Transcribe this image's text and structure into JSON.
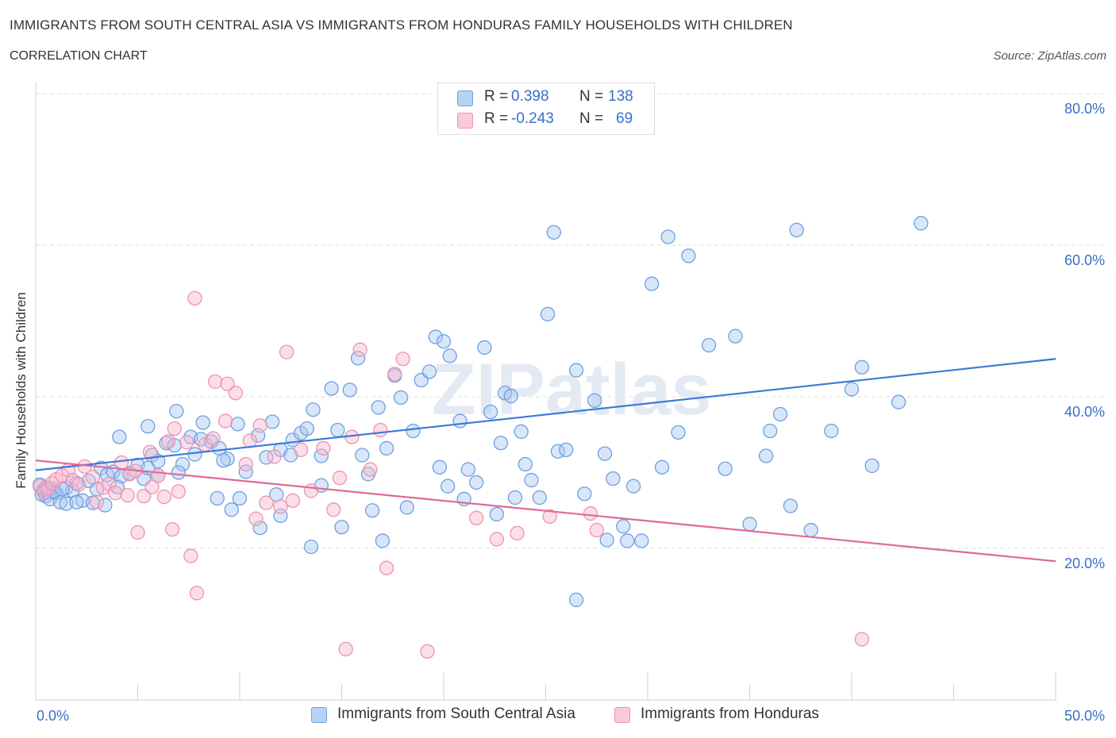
{
  "title": "IMMIGRANTS FROM SOUTH CENTRAL ASIA VS IMMIGRANTS FROM HONDURAS FAMILY HOUSEHOLDS WITH CHILDREN",
  "subtitle": "CORRELATION CHART",
  "source": "Source: ZipAtlas.com",
  "watermark": "ZIPatlas",
  "legend": {
    "rows": [
      {
        "r_label": "R =",
        "r_value": "0.398",
        "n_label": "N =",
        "n_value": "138",
        "color": "#a9c8f2"
      },
      {
        "r_label": "R =",
        "r_value": "-0.243",
        "n_label": "N =",
        "n_value": "69",
        "color": "#f6b8cc"
      }
    ]
  },
  "chart_data": {
    "type": "scatter",
    "xlabel": "",
    "ylabel": "Family Households with Children",
    "xlim": [
      0,
      50
    ],
    "ylim": [
      0,
      80
    ],
    "x_tick_labels": [
      "0.0%",
      "50.0%"
    ],
    "y_ticks": [
      20,
      40,
      60,
      80
    ],
    "y_tick_labels": [
      "20.0%",
      "40.0%",
      "60.0%",
      "80.0%"
    ],
    "grid": true,
    "legend_position": "top-center",
    "series": [
      {
        "name": "Immigrants from South Central Asia",
        "color": "#6f9fe0",
        "fill": "#a9c8f2",
        "line_color": "#3a78d8",
        "trend": [
          [
            0,
            30.3
          ],
          [
            50,
            45.0
          ]
        ],
        "points": [
          [
            0.2,
            28.4
          ],
          [
            0.3,
            27.1
          ],
          [
            0.4,
            27.7
          ],
          [
            0.5,
            26.9
          ],
          [
            0.6,
            27.4
          ],
          [
            0.7,
            26.5
          ],
          [
            0.8,
            27.9
          ],
          [
            1.0,
            27.3
          ],
          [
            1.2,
            26.1
          ],
          [
            1.5,
            28.0
          ],
          [
            1.8,
            27.6
          ],
          [
            2.0,
            28.6
          ],
          [
            2.3,
            26.3
          ],
          [
            2.6,
            28.9
          ],
          [
            3.0,
            27.8
          ],
          [
            3.2,
            30.6
          ],
          [
            3.5,
            29.7
          ],
          [
            3.8,
            30.1
          ],
          [
            4.2,
            29.5
          ],
          [
            4.6,
            29.9
          ],
          [
            5.0,
            31.0
          ],
          [
            5.3,
            29.2
          ],
          [
            5.7,
            32.3
          ],
          [
            6.0,
            31.5
          ],
          [
            6.4,
            33.9
          ],
          [
            6.8,
            33.6
          ],
          [
            7.2,
            31.1
          ],
          [
            7.6,
            34.7
          ],
          [
            8.1,
            34.4
          ],
          [
            8.6,
            34.1
          ],
          [
            9.0,
            33.2
          ],
          [
            9.4,
            31.8
          ],
          [
            9.9,
            36.4
          ],
          [
            10.3,
            30.1
          ],
          [
            10.9,
            34.9
          ],
          [
            11.3,
            32.0
          ],
          [
            11.6,
            36.7
          ],
          [
            12.0,
            33.0
          ],
          [
            12.6,
            34.3
          ],
          [
            13.0,
            35.2
          ],
          [
            13.3,
            35.8
          ],
          [
            13.6,
            38.3
          ],
          [
            14.0,
            32.2
          ],
          [
            14.5,
            41.1
          ],
          [
            14.8,
            35.6
          ],
          [
            15.4,
            40.9
          ],
          [
            15.8,
            45.1
          ],
          [
            16.0,
            32.3
          ],
          [
            16.3,
            29.8
          ],
          [
            16.8,
            38.6
          ],
          [
            17.2,
            33.2
          ],
          [
            17.6,
            42.8
          ],
          [
            17.9,
            39.9
          ],
          [
            18.5,
            35.5
          ],
          [
            18.9,
            42.2
          ],
          [
            19.3,
            43.3
          ],
          [
            19.6,
            47.9
          ],
          [
            20.0,
            47.3
          ],
          [
            20.3,
            45.4
          ],
          [
            20.8,
            36.8
          ],
          [
            21.2,
            30.4
          ],
          [
            21.6,
            28.7
          ],
          [
            22.0,
            46.5
          ],
          [
            22.3,
            38.0
          ],
          [
            22.6,
            24.5
          ],
          [
            23.0,
            40.5
          ],
          [
            23.3,
            40.1
          ],
          [
            23.8,
            35.4
          ],
          [
            24.3,
            29.0
          ],
          [
            24.7,
            26.7
          ],
          [
            25.1,
            50.9
          ],
          [
            25.6,
            32.8
          ],
          [
            26.0,
            33.0
          ],
          [
            26.5,
            43.5
          ],
          [
            26.9,
            27.2
          ],
          [
            27.4,
            39.5
          ],
          [
            27.9,
            32.5
          ],
          [
            28.3,
            29.2
          ],
          [
            28.8,
            22.9
          ],
          [
            29.3,
            28.2
          ],
          [
            29.7,
            21.0
          ],
          [
            30.2,
            54.9
          ],
          [
            30.7,
            30.7
          ],
          [
            31.0,
            61.1
          ],
          [
            31.5,
            35.3
          ],
          [
            32.0,
            58.6
          ],
          [
            33.0,
            46.8
          ],
          [
            33.8,
            30.5
          ],
          [
            34.3,
            48.0
          ],
          [
            35.0,
            23.2
          ],
          [
            35.8,
            32.2
          ],
          [
            36.0,
            35.5
          ],
          [
            36.5,
            37.7
          ],
          [
            37.0,
            25.6
          ],
          [
            37.3,
            62.0
          ],
          [
            38.0,
            22.4
          ],
          [
            39.0,
            35.5
          ],
          [
            40.0,
            41.0
          ],
          [
            40.5,
            43.9
          ],
          [
            41.0,
            30.9
          ],
          [
            42.3,
            39.3
          ],
          [
            43.4,
            62.9
          ],
          [
            25.4,
            61.7
          ],
          [
            1.5,
            25.9
          ],
          [
            2.0,
            26.1
          ],
          [
            4.0,
            28.1
          ],
          [
            5.5,
            30.6
          ],
          [
            7.0,
            30.0
          ],
          [
            8.9,
            26.6
          ],
          [
            10.0,
            26.6
          ],
          [
            11.8,
            27.1
          ],
          [
            12.5,
            32.3
          ],
          [
            16.5,
            25.0
          ],
          [
            17.0,
            21.0
          ],
          [
            20.2,
            28.2
          ],
          [
            24.0,
            31.1
          ],
          [
            26.5,
            13.2
          ],
          [
            28.0,
            21.1
          ],
          [
            29.0,
            21.0
          ],
          [
            14.0,
            28.3
          ],
          [
            11.0,
            22.7
          ],
          [
            9.6,
            25.1
          ],
          [
            8.2,
            36.6
          ],
          [
            6.9,
            38.1
          ],
          [
            5.5,
            36.1
          ],
          [
            4.1,
            34.7
          ],
          [
            18.2,
            25.4
          ],
          [
            19.8,
            30.7
          ],
          [
            21.0,
            26.5
          ],
          [
            22.8,
            33.9
          ],
          [
            23.5,
            26.7
          ],
          [
            15.0,
            22.8
          ],
          [
            13.5,
            20.2
          ],
          [
            12.0,
            24.3
          ],
          [
            3.4,
            25.7
          ],
          [
            0.9,
            27.5
          ],
          [
            0.5,
            28.0
          ],
          [
            1.3,
            27.8
          ],
          [
            2.8,
            26.0
          ],
          [
            6.0,
            29.6
          ],
          [
            7.8,
            32.4
          ],
          [
            9.2,
            31.6
          ]
        ]
      },
      {
        "name": "Immigrants from Honduras",
        "color": "#ee93b0",
        "fill": "#f6b8cc",
        "line_color": "#e06a96",
        "trend": [
          [
            0,
            31.6
          ],
          [
            50,
            18.3
          ]
        ],
        "points": [
          [
            0.2,
            28.2
          ],
          [
            0.4,
            27.4
          ],
          [
            0.6,
            27.9
          ],
          [
            0.8,
            28.6
          ],
          [
            1.0,
            29.1
          ],
          [
            1.3,
            29.6
          ],
          [
            1.6,
            30.3
          ],
          [
            1.8,
            29.0
          ],
          [
            2.1,
            28.4
          ],
          [
            2.4,
            30.8
          ],
          [
            2.8,
            29.4
          ],
          [
            3.0,
            26.1
          ],
          [
            3.3,
            28.0
          ],
          [
            3.6,
            28.5
          ],
          [
            3.9,
            27.3
          ],
          [
            4.2,
            31.3
          ],
          [
            4.6,
            29.8
          ],
          [
            5.0,
            22.1
          ],
          [
            5.3,
            26.9
          ],
          [
            5.6,
            32.7
          ],
          [
            6.0,
            29.6
          ],
          [
            6.3,
            26.8
          ],
          [
            6.5,
            34.1
          ],
          [
            6.8,
            35.8
          ],
          [
            7.0,
            27.5
          ],
          [
            7.4,
            34.0
          ],
          [
            7.6,
            19.0
          ],
          [
            7.8,
            53.0
          ],
          [
            7.9,
            14.1
          ],
          [
            8.3,
            33.7
          ],
          [
            8.7,
            34.5
          ],
          [
            8.8,
            42.0
          ],
          [
            9.3,
            36.8
          ],
          [
            9.4,
            41.7
          ],
          [
            9.8,
            40.5
          ],
          [
            10.3,
            31.1
          ],
          [
            10.5,
            34.2
          ],
          [
            10.8,
            23.9
          ],
          [
            11.0,
            36.2
          ],
          [
            11.3,
            26.0
          ],
          [
            11.7,
            32.1
          ],
          [
            12.0,
            25.5
          ],
          [
            12.3,
            45.9
          ],
          [
            12.6,
            26.3
          ],
          [
            13.0,
            33.0
          ],
          [
            13.5,
            27.6
          ],
          [
            14.1,
            33.2
          ],
          [
            14.6,
            25.1
          ],
          [
            14.9,
            29.3
          ],
          [
            15.2,
            6.7
          ],
          [
            15.5,
            34.7
          ],
          [
            15.9,
            46.2
          ],
          [
            16.4,
            30.4
          ],
          [
            16.9,
            35.6
          ],
          [
            17.2,
            17.4
          ],
          [
            17.6,
            43.0
          ],
          [
            18.0,
            45.0
          ],
          [
            19.2,
            6.4
          ],
          [
            21.6,
            24.0
          ],
          [
            22.6,
            21.2
          ],
          [
            23.6,
            22.0
          ],
          [
            25.2,
            24.2
          ],
          [
            27.5,
            22.4
          ],
          [
            40.5,
            8.0
          ],
          [
            27.2,
            24.6
          ],
          [
            6.7,
            22.5
          ],
          [
            5.7,
            28.1
          ],
          [
            4.9,
            30.2
          ],
          [
            4.5,
            27.0
          ]
        ]
      }
    ]
  }
}
